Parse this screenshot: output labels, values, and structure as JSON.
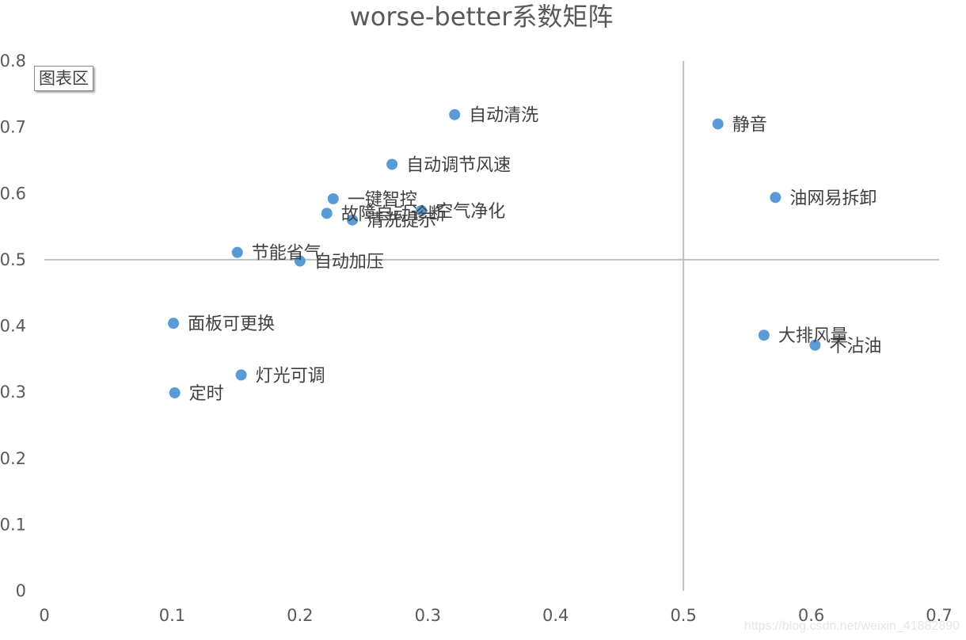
{
  "chart_data": {
    "type": "scatter",
    "title": "worse-better系数矩阵",
    "xlabel": "",
    "ylabel": "",
    "xlim": [
      0,
      0.7
    ],
    "ylim": [
      0,
      0.8
    ],
    "x_ticks": [
      "0",
      "0.1",
      "0.2",
      "0.3",
      "0.4",
      "0.5",
      "0.6",
      "0.7"
    ],
    "y_ticks": [
      "0",
      "0.1",
      "0.2",
      "0.3",
      "0.4",
      "0.5",
      "0.6",
      "0.7",
      "0.8"
    ],
    "reference_lines": {
      "x": 0.5,
      "y": 0.5
    },
    "marker_color": "#5b9bd5",
    "grid": false,
    "points": [
      {
        "label": "自动清洗",
        "x": 0.321,
        "y": 0.719
      },
      {
        "label": "静音",
        "x": 0.527,
        "y": 0.705
      },
      {
        "label": "自动调节风速",
        "x": 0.272,
        "y": 0.644
      },
      {
        "label": "一键智控",
        "x": 0.226,
        "y": 0.592
      },
      {
        "label": "油网易拆卸",
        "x": 0.572,
        "y": 0.594
      },
      {
        "label": "空气净化",
        "x": 0.295,
        "y": 0.574
      },
      {
        "label": "故障自动诊断",
        "x": 0.221,
        "y": 0.57
      },
      {
        "label": "清洗提示",
        "x": 0.241,
        "y": 0.56
      },
      {
        "label": "节能省气",
        "x": 0.151,
        "y": 0.511
      },
      {
        "label": "自动加压",
        "x": 0.2,
        "y": 0.498
      },
      {
        "label": "面板可更换",
        "x": 0.101,
        "y": 0.404
      },
      {
        "label": "大排风量",
        "x": 0.563,
        "y": 0.386
      },
      {
        "label": "不沾油",
        "x": 0.603,
        "y": 0.371
      },
      {
        "label": "灯光可调",
        "x": 0.154,
        "y": 0.326
      },
      {
        "label": "定时",
        "x": 0.102,
        "y": 0.299
      }
    ]
  },
  "chart_area_tag": "图表区",
  "watermark": "https://blog.csdn.net/weixin_41882890"
}
